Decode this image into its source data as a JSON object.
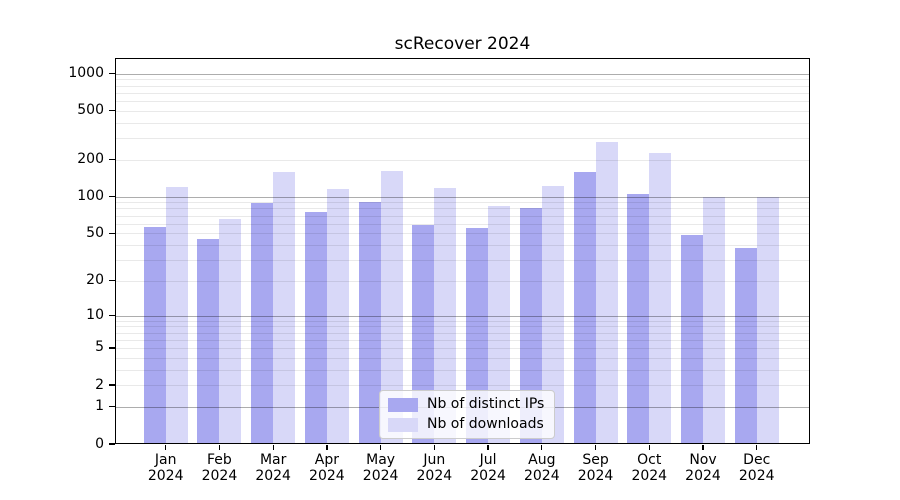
{
  "chart_data": {
    "type": "bar",
    "title": "scRecover 2024",
    "months": [
      "Jan",
      "Feb",
      "Mar",
      "Apr",
      "May",
      "Jun",
      "Jul",
      "Aug",
      "Sep",
      "Oct",
      "Nov",
      "Dec"
    ],
    "year": "2024",
    "series": [
      {
        "name": "Nb of distinct IPs",
        "color": "#a8a8f0",
        "values": [
          56,
          45,
          88,
          75,
          91,
          59,
          55,
          80,
          160,
          106,
          48,
          38
        ]
      },
      {
        "name": "Nb of downloads",
        "color": "#d8d8f8",
        "values": [
          120,
          66,
          160,
          115,
          161,
          117,
          84,
          122,
          278,
          228,
          100,
          100
        ]
      }
    ],
    "y_axis": {
      "scale": "log1p",
      "tick_labels": [
        0,
        1,
        2,
        5,
        10,
        20,
        50,
        100,
        200,
        500,
        1000
      ],
      "major_gridlines": [
        1,
        10,
        100,
        1000
      ],
      "ylim": [
        0,
        1340
      ],
      "grid": true
    },
    "legend": {
      "position": "lower center"
    }
  }
}
